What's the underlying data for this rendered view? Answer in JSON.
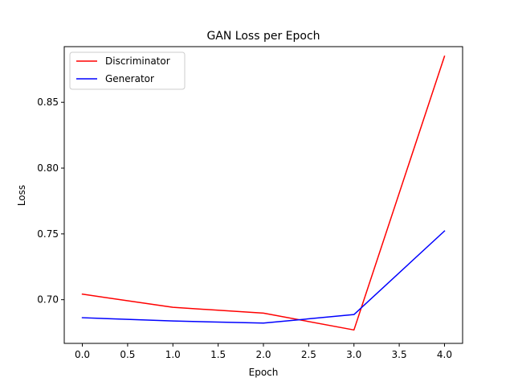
{
  "chart_data": {
    "type": "line",
    "title": "GAN Loss per Epoch",
    "xlabel": "Epoch",
    "ylabel": "Loss",
    "x": [
      0,
      1,
      2,
      3,
      4
    ],
    "xlim": [
      -0.2,
      4.2
    ],
    "ylim": [
      0.6668,
      0.8923
    ],
    "xticks": [
      0.0,
      0.5,
      1.0,
      1.5,
      2.0,
      2.5,
      3.0,
      3.5,
      4.0
    ],
    "xtick_labels": [
      "0.0",
      "0.5",
      "1.0",
      "1.5",
      "2.0",
      "2.5",
      "3.0",
      "3.5",
      "4.0"
    ],
    "yticks": [
      0.7,
      0.75,
      0.8,
      0.85
    ],
    "ytick_labels": [
      "0.70",
      "0.75",
      "0.80",
      "0.85"
    ],
    "grid": false,
    "legend_position": "top-left",
    "series": [
      {
        "name": "Discriminator",
        "color": "#ff0000",
        "values": [
          0.7042,
          0.6942,
          0.6898,
          0.677,
          0.885
        ]
      },
      {
        "name": "Generator",
        "color": "#0000ff",
        "values": [
          0.6863,
          0.6838,
          0.6822,
          0.6887,
          0.7522
        ]
      }
    ]
  }
}
